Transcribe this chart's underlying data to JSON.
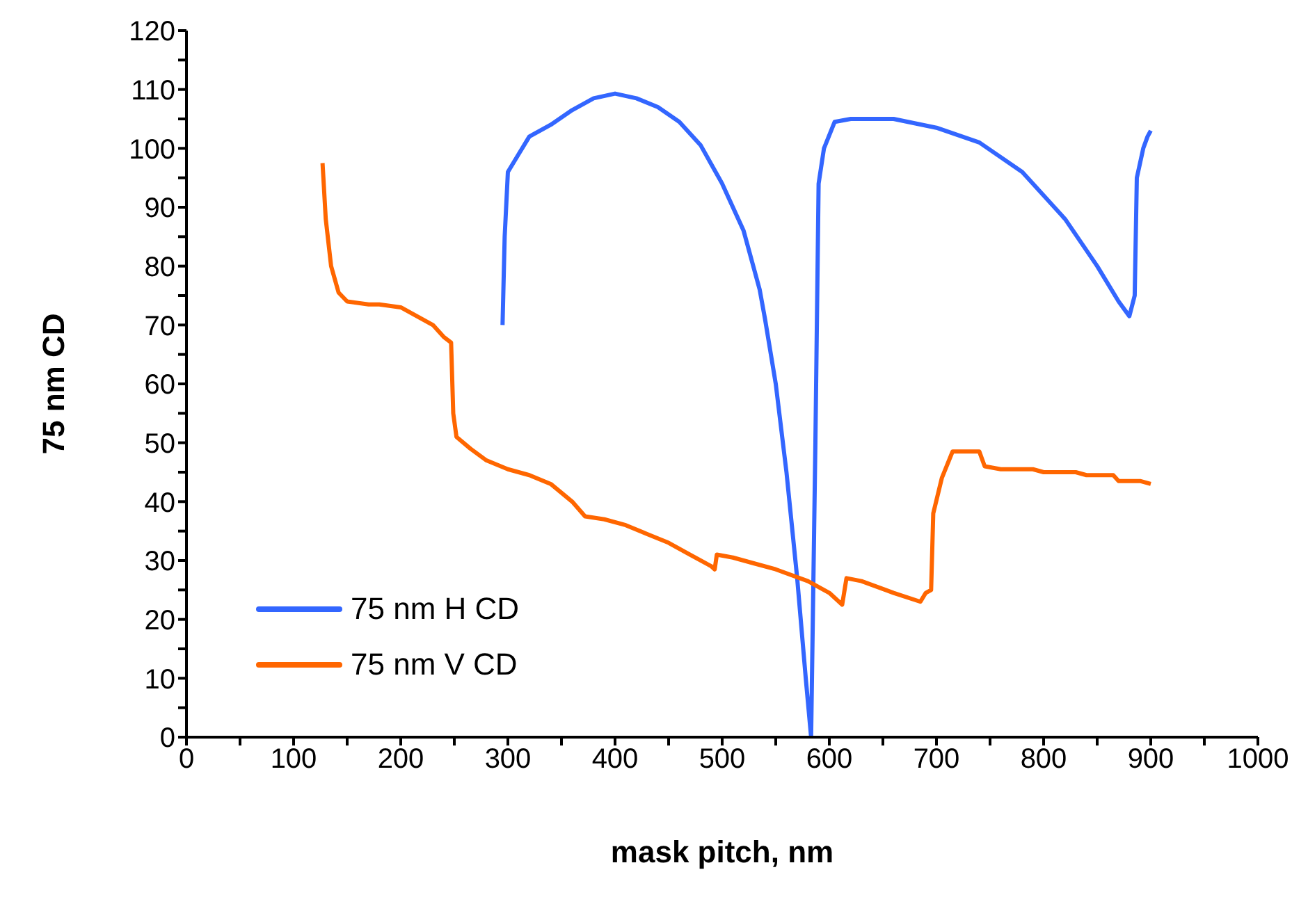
{
  "chart_data": {
    "type": "line",
    "xlabel": "mask pitch, nm",
    "ylabel": "75 nm CD",
    "xlim": [
      0,
      1000
    ],
    "xticks": [
      0,
      {
        "value": 50,
        "label": null
      },
      100,
      {
        "value": 150,
        "label": null
      },
      200,
      {
        "value": 250,
        "label": null
      },
      300,
      {
        "value": 350,
        "label": null
      },
      400,
      {
        "value": 450,
        "label": null
      },
      500,
      {
        "value": 550,
        "label": null
      },
      600,
      {
        "value": 650,
        "label": null
      },
      700,
      {
        "value": 750,
        "label": null
      },
      800,
      {
        "value": 850,
        "label": null
      },
      900,
      {
        "value": 950,
        "label": null
      },
      1000
    ],
    "ylim": [
      0,
      120
    ],
    "yticks": [
      0,
      {
        "value": 5,
        "label": null
      },
      10,
      {
        "value": 15,
        "label": null
      },
      20,
      {
        "value": 25,
        "label": null
      },
      30,
      {
        "value": 35,
        "label": null
      },
      40,
      {
        "value": 45,
        "label": null
      },
      50,
      {
        "value": 55,
        "label": null
      },
      60,
      {
        "value": 65,
        "label": null
      },
      70,
      {
        "value": 75,
        "label": null
      },
      80,
      {
        "value": 85,
        "label": null
      },
      90,
      {
        "value": 95,
        "label": null
      },
      100,
      {
        "value": 105,
        "label": null
      },
      110,
      {
        "value": 115,
        "label": null
      },
      120
    ],
    "grid": false,
    "legend": "bottom left",
    "marker": "none",
    "line_style": "solid",
    "series": [
      {
        "name": "75 nm H CD",
        "color": "#3366ff",
        "x": [
          295,
          297,
          300,
          310,
          320,
          340,
          360,
          380,
          400,
          420,
          440,
          460,
          480,
          500,
          520,
          535,
          540,
          550,
          560,
          570,
          578,
          583,
          587,
          590,
          595,
          605,
          620,
          660,
          700,
          740,
          780,
          820,
          850,
          870,
          880,
          885,
          887,
          893,
          897,
          900
        ],
        "values": [
          70,
          85,
          96,
          99,
          102,
          104,
          106.5,
          108.5,
          109.3,
          108.5,
          107,
          104.5,
          100.5,
          94,
          86,
          76,
          71,
          60,
          45,
          27,
          10,
          0,
          50,
          94,
          100,
          104.5,
          105,
          105,
          103.5,
          101,
          96,
          88,
          80,
          74,
          71.5,
          75,
          95,
          100,
          102,
          103
        ]
      },
      {
        "name": "75 nm V CD",
        "color": "#ff6600",
        "x": [
          127,
          130,
          135,
          142,
          150,
          170,
          180,
          200,
          210,
          230,
          240,
          247,
          249,
          252,
          265,
          280,
          300,
          320,
          340,
          360,
          372,
          390,
          410,
          430,
          450,
          470,
          490,
          493,
          495,
          510,
          530,
          550,
          580,
          600,
          612,
          616,
          630,
          660,
          685,
          690,
          695,
          697,
          705,
          715,
          740,
          745,
          760,
          790,
          800,
          830,
          840,
          865,
          870,
          890,
          900
        ],
        "values": [
          97.5,
          88,
          80,
          75.5,
          74,
          73.5,
          73.5,
          73,
          72,
          70,
          68,
          67,
          55,
          51,
          49,
          47,
          45.5,
          44.5,
          43,
          40,
          37.5,
          37,
          36,
          34.5,
          33,
          31,
          29,
          28.5,
          31,
          30.5,
          29.5,
          28.5,
          26.5,
          24.5,
          22.5,
          27,
          26.5,
          24.5,
          23,
          24.5,
          25,
          38,
          44,
          48.5,
          48.5,
          46,
          45.5,
          45.5,
          45,
          45,
          44.5,
          44.5,
          43.5,
          43.5,
          43
        ]
      }
    ]
  }
}
